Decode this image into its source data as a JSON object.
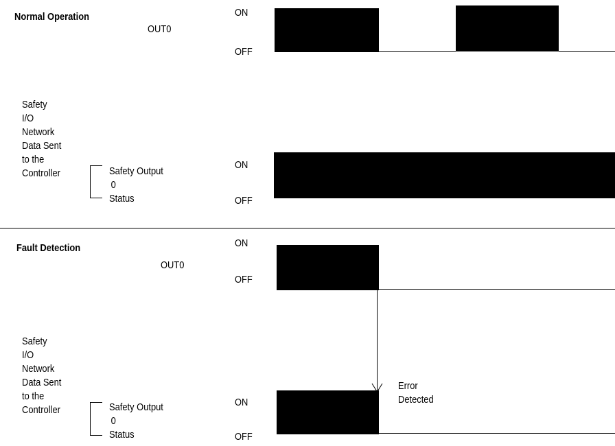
{
  "sections": [
    {
      "title": "Normal Operation",
      "out_label": "OUT0",
      "out_on": "ON",
      "out_off": "OFF",
      "net_label": [
        "Safety",
        "I/O",
        "Network",
        "Data Sent",
        "to the",
        "Controller"
      ],
      "status_label": [
        "Safety Output",
        "0",
        "Status"
      ],
      "status_on": "ON",
      "status_off": "OFF"
    },
    {
      "title": "Fault Detection",
      "out_label": "OUT0",
      "out_on": "ON",
      "out_off": "OFF",
      "net_label": [
        "Safety",
        "I/O",
        "Network",
        "Data Sent",
        "to the",
        "Controller"
      ],
      "status_label": [
        "Safety Output",
        "0",
        "Status"
      ],
      "status_on": "ON",
      "status_off": "OFF",
      "annotation": [
        "Error",
        "Detected"
      ]
    }
  ]
}
